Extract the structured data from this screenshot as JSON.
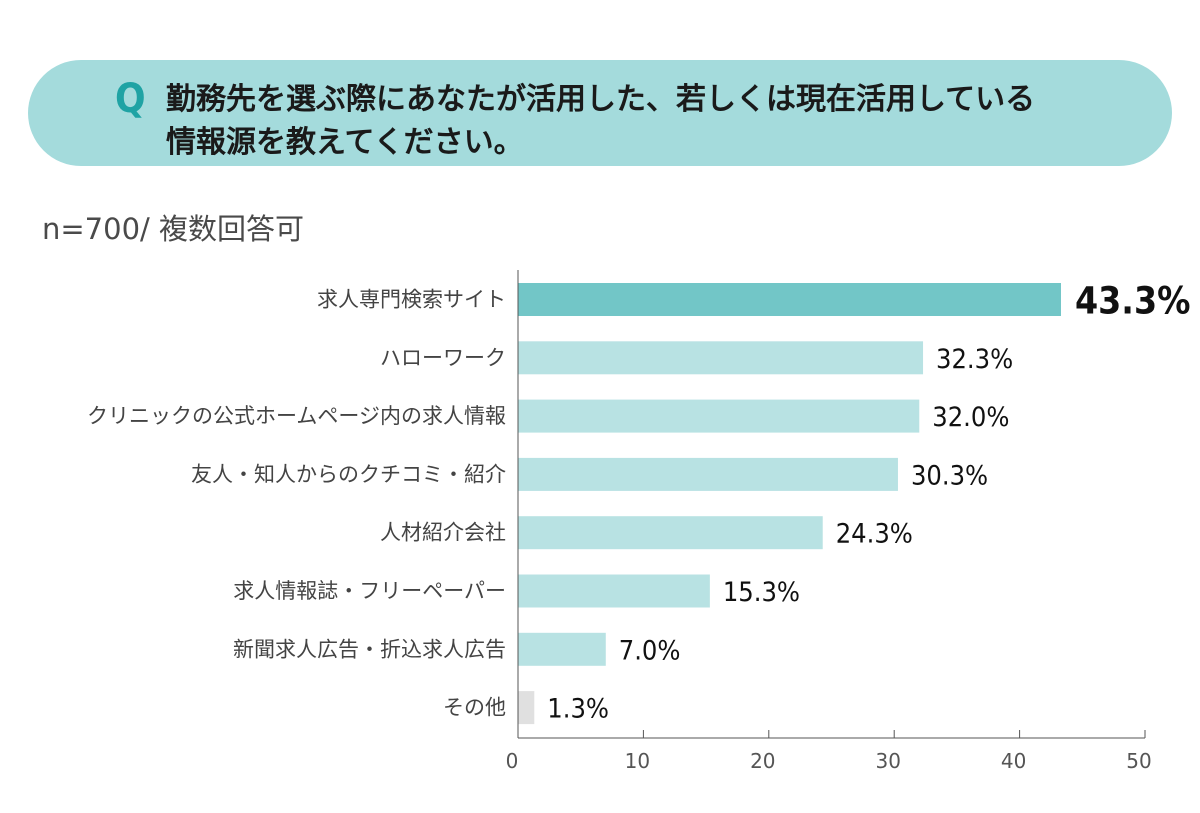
{
  "question": {
    "mark": "Q",
    "line1": "勤務先を選ぶ際にあなたが活用した、若しくは現在活用している",
    "line2": "情報源を教えてください。"
  },
  "sample_note": "n=700/ 複数回答可",
  "colors": {
    "banner": "#a4dbdc",
    "q_mark": "#1fa3a4",
    "bar_highlight": "#72c6c7",
    "bar_normal": "#b8e2e3",
    "bar_other": "#e0e0e0",
    "axis": "#555555"
  },
  "chart_data": {
    "type": "bar",
    "orientation": "horizontal",
    "categories": [
      "求人専門検索サイト",
      "ハローワーク",
      "クリニックの公式ホームページ内の求人情報",
      "友人・知人からのクチコミ・紹介",
      "人材紹介会社",
      "求人情報誌・フリーペーパー",
      "新聞求人広告・折込求人広告",
      "その他"
    ],
    "values": [
      43.3,
      32.3,
      32.0,
      30.3,
      24.3,
      15.3,
      7.0,
      1.3
    ],
    "value_labels": [
      "43.3%",
      "32.3%",
      "32.0%",
      "30.3%",
      "24.3%",
      "15.3%",
      "7.0%",
      "1.3%"
    ],
    "xlim": [
      0,
      50
    ],
    "xticks": [
      0,
      10,
      20,
      30,
      40,
      50
    ],
    "grid": false,
    "legend": "none"
  }
}
